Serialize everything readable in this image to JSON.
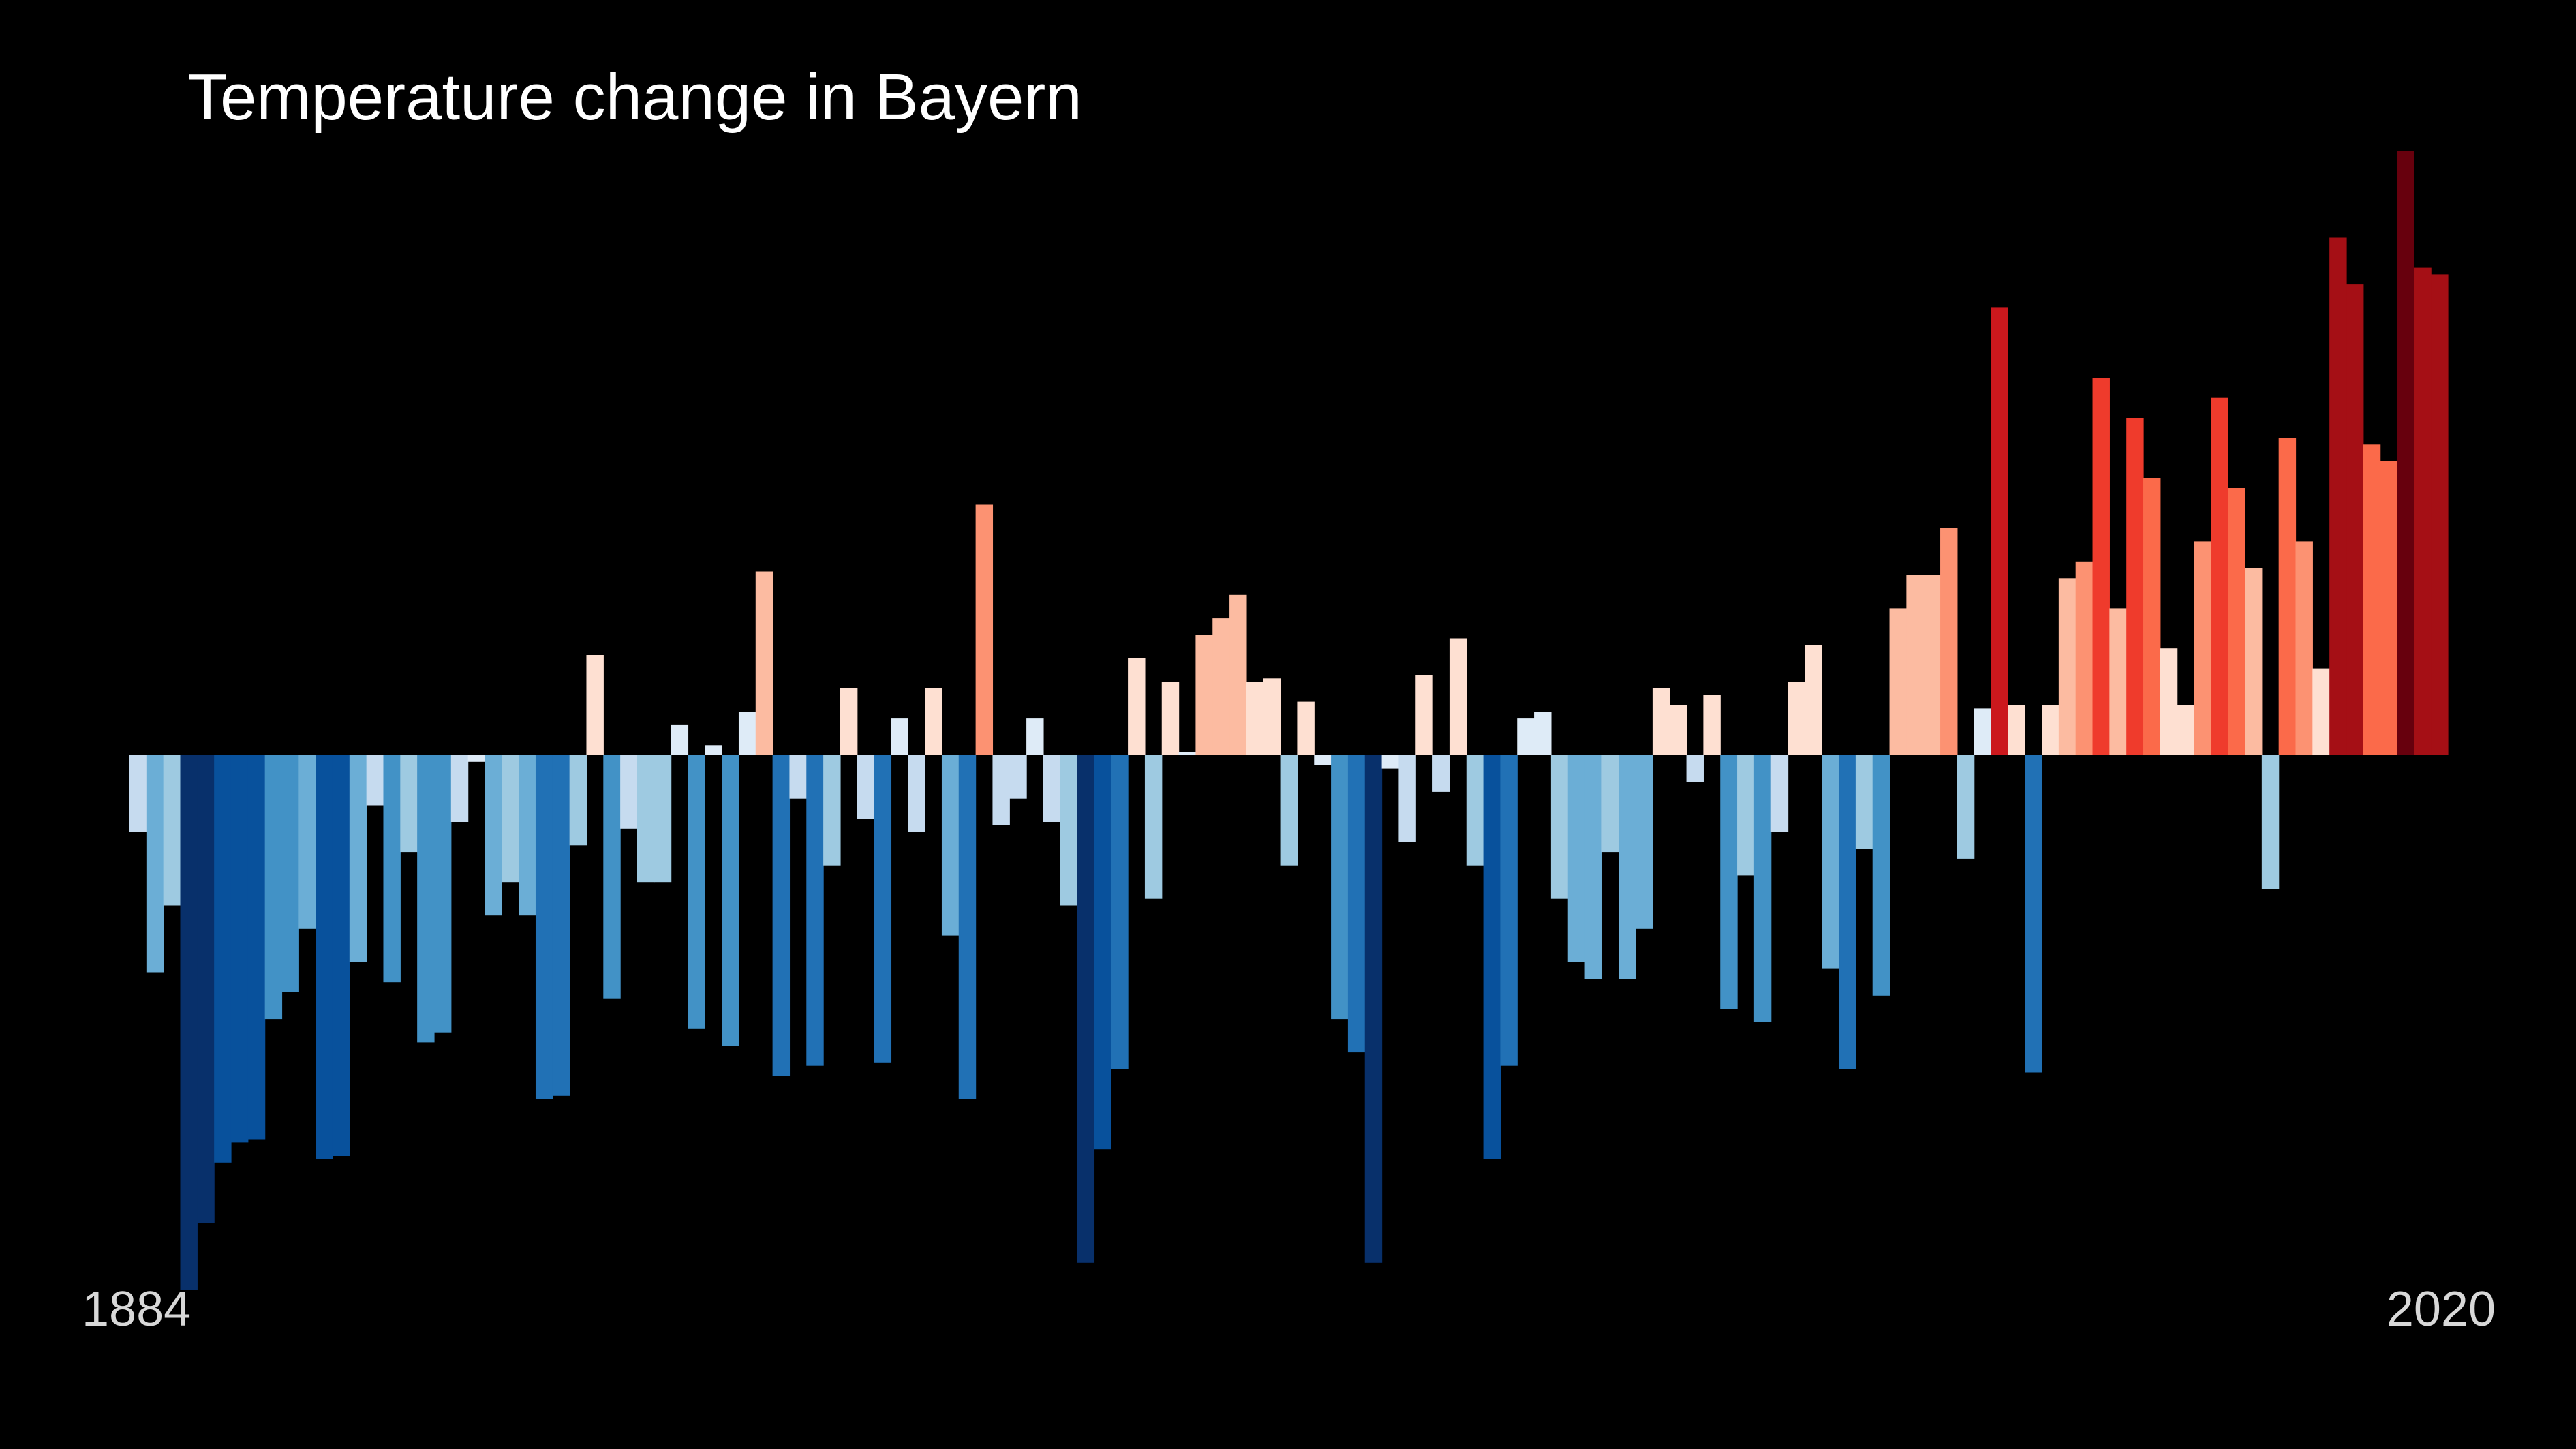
{
  "chart_data": {
    "type": "bar",
    "title": "Temperature change in Bayern",
    "start_year": "1884",
    "end_year": "2020",
    "ylim": [
      -1.6,
      1.8
    ],
    "grid": false,
    "legend": "none",
    "values": [
      -0.23,
      -0.65,
      -0.45,
      -1.6,
      -1.4,
      -1.22,
      -1.16,
      -1.15,
      -0.79,
      -0.71,
      -0.52,
      -1.21,
      -1.2,
      -0.62,
      -0.15,
      -0.68,
      -0.29,
      -0.86,
      -0.83,
      -0.2,
      -0.02,
      -0.48,
      -0.38,
      -0.48,
      -1.03,
      -1.02,
      -0.27,
      0.3,
      -0.73,
      -0.22,
      -0.38,
      -0.38,
      0.09,
      -0.82,
      0.03,
      -0.87,
      0.13,
      0.55,
      -0.96,
      -0.13,
      -0.93,
      -0.33,
      0.2,
      -0.19,
      -0.92,
      0.11,
      -0.23,
      0.2,
      -0.54,
      -1.03,
      0.75,
      -0.21,
      -0.13,
      0.11,
      -0.2,
      -0.45,
      -1.52,
      -1.18,
      -0.94,
      0.29,
      -0.43,
      0.22,
      0.01,
      0.36,
      0.41,
      0.48,
      0.22,
      0.23,
      -0.33,
      0.16,
      -0.03,
      -0.79,
      -0.89,
      -1.52,
      -0.04,
      -0.26,
      0.24,
      -0.11,
      0.35,
      -0.33,
      -1.21,
      -0.93,
      0.11,
      0.13,
      -0.43,
      -0.62,
      -0.67,
      -0.29,
      -0.67,
      -0.52,
      0.2,
      0.15,
      -0.08,
      0.18,
      -0.76,
      -0.36,
      -0.8,
      -0.23,
      0.22,
      0.33,
      -0.64,
      -0.94,
      -0.28,
      -0.72,
      0.44,
      0.54,
      0.54,
      0.68,
      -0.31,
      0.14,
      1.34,
      0.15,
      -0.95,
      0.15,
      0.53,
      0.58,
      1.13,
      0.44,
      1.01,
      0.83,
      0.32,
      0.15,
      0.64,
      1.07,
      0.8,
      0.56,
      -0.4,
      0.95,
      0.64,
      0.26,
      1.55,
      1.41,
      0.93,
      0.88,
      1.81,
      1.46,
      1.44
    ],
    "colors": {
      "background": "#000000",
      "title": "#ffffff",
      "year_labels": "#d8d8d8",
      "scale": [
        "#08306b",
        "#08519c",
        "#2171b5",
        "#4292c6",
        "#6baed6",
        "#9ecae1",
        "#c6dbef",
        "#deebf7",
        "#fee0d2",
        "#fcbba1",
        "#fc9272",
        "#fb6a4a",
        "#ef3b2c",
        "#cb181d",
        "#a50f15",
        "#67000d"
      ]
    }
  }
}
